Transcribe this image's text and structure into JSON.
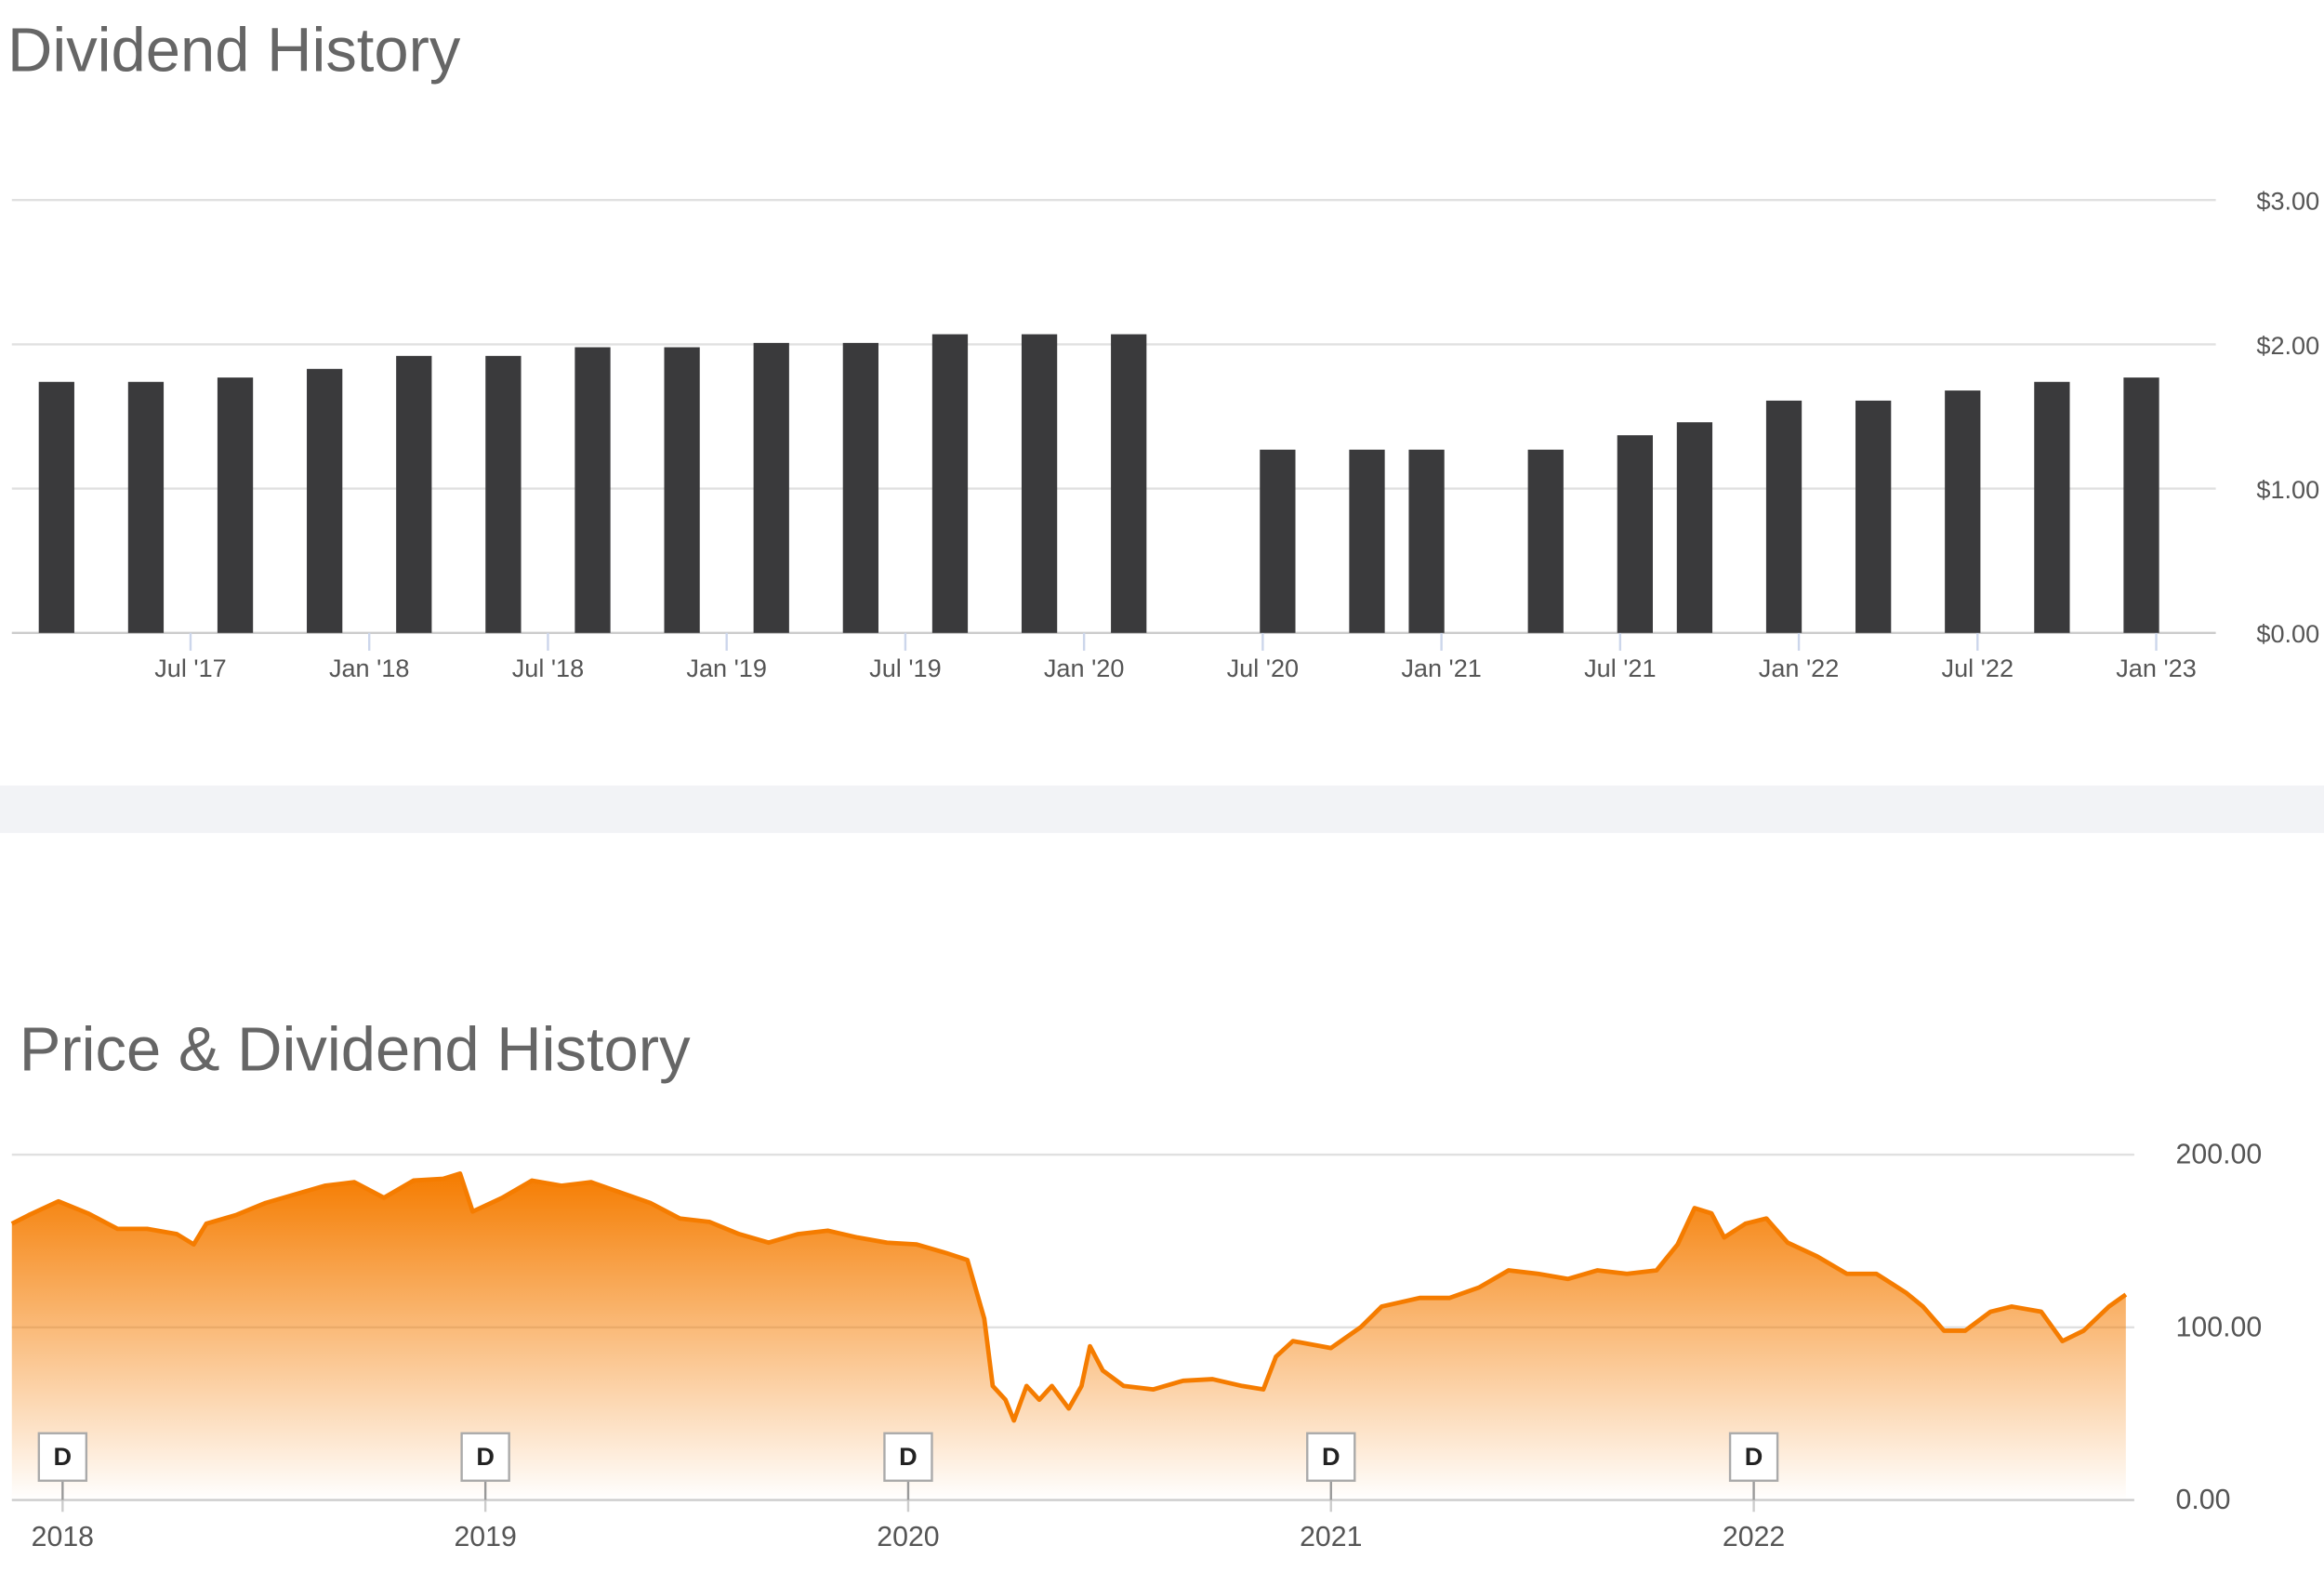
{
  "chart_data": [
    {
      "type": "bar",
      "title": "Dividend History",
      "x": [
        "2017-02",
        "2017-05",
        "2017-08",
        "2017-11",
        "2018-02",
        "2018-05",
        "2018-08",
        "2018-11",
        "2019-02",
        "2019-05",
        "2019-08",
        "2019-11",
        "2020-02",
        "2020-07",
        "2020-10",
        "2020-12",
        "2021-04",
        "2021-07",
        "2021-09",
        "2021-12",
        "2022-03",
        "2022-06",
        "2022-09",
        "2022-12"
      ],
      "values": [
        1.74,
        1.74,
        1.77,
        1.83,
        1.92,
        1.92,
        1.98,
        1.98,
        2.01,
        2.01,
        2.07,
        2.07,
        2.07,
        1.27,
        1.27,
        1.27,
        1.27,
        1.37,
        1.46,
        1.61,
        1.61,
        1.68,
        1.74,
        1.77
      ],
      "color": "#3a3a3c",
      "xlim": [
        "2017-01",
        "2023-03"
      ],
      "xticks": [
        {
          "value": "2017-07",
          "label": "Jul '17"
        },
        {
          "value": "2018-01",
          "label": "Jan '18"
        },
        {
          "value": "2018-07",
          "label": "Jul '18"
        },
        {
          "value": "2019-01",
          "label": "Jan '19"
        },
        {
          "value": "2019-07",
          "label": "Jul '19"
        },
        {
          "value": "2020-01",
          "label": "Jan '20"
        },
        {
          "value": "2020-07",
          "label": "Jul '20"
        },
        {
          "value": "2021-01",
          "label": "Jan '21"
        },
        {
          "value": "2021-07",
          "label": "Jul '21"
        },
        {
          "value": "2022-01",
          "label": "Jan '22"
        },
        {
          "value": "2022-07",
          "label": "Jul '22"
        },
        {
          "value": "2023-01",
          "label": "Jan '23"
        }
      ],
      "ylim": [
        0,
        3
      ],
      "yticks": [
        {
          "value": 0,
          "label": "$0.00"
        },
        {
          "value": 1,
          "label": "$1.00"
        },
        {
          "value": 2,
          "label": "$2.00"
        },
        {
          "value": 3,
          "label": "$3.00"
        }
      ],
      "grid": true
    },
    {
      "type": "area",
      "title": "Price & Dividend History",
      "x": [
        2017.88,
        2017.92,
        2017.99,
        2018.06,
        2018.13,
        2018.2,
        2018.27,
        2018.31,
        2018.34,
        2018.41,
        2018.48,
        2018.55,
        2018.62,
        2018.69,
        2018.76,
        2018.83,
        2018.9,
        2018.94,
        2018.97,
        2019.04,
        2019.11,
        2019.18,
        2019.25,
        2019.32,
        2019.39,
        2019.46,
        2019.53,
        2019.6,
        2019.67,
        2019.74,
        2019.81,
        2019.88,
        2019.95,
        2020.02,
        2020.09,
        2020.14,
        2020.18,
        2020.2,
        2020.23,
        2020.25,
        2020.28,
        2020.31,
        2020.34,
        2020.38,
        2020.41,
        2020.43,
        2020.46,
        2020.51,
        2020.58,
        2020.65,
        2020.72,
        2020.79,
        2020.84,
        2020.87,
        2020.91,
        2021.0,
        2021.07,
        2021.12,
        2021.21,
        2021.28,
        2021.35,
        2021.42,
        2021.49,
        2021.56,
        2021.63,
        2021.7,
        2021.77,
        2021.82,
        2021.86,
        2021.9,
        2021.93,
        2021.98,
        2022.03,
        2022.08,
        2022.15,
        2022.22,
        2022.29,
        2022.36,
        2022.4,
        2022.45,
        2022.5,
        2022.56,
        2022.61,
        2022.68,
        2022.73,
        2022.78,
        2022.84,
        2022.88
      ],
      "values": [
        160,
        165,
        173,
        166,
        157,
        157,
        154,
        148,
        160,
        165,
        172,
        177,
        182,
        184,
        175,
        185,
        186,
        189,
        167,
        175,
        185,
        182,
        184,
        178,
        172,
        163,
        161,
        154,
        149,
        154,
        156,
        152,
        149,
        148,
        143,
        139,
        105,
        66,
        58,
        46,
        66,
        58,
        66,
        53,
        66,
        89,
        75,
        66,
        64,
        69,
        70,
        66,
        64,
        83,
        92,
        88,
        100,
        112,
        117,
        117,
        123,
        133,
        131,
        128,
        133,
        131,
        133,
        148,
        169,
        166,
        152,
        160,
        163,
        149,
        141,
        131,
        131,
        120,
        112,
        98,
        98,
        109,
        112,
        109,
        92,
        98,
        112,
        119
      ],
      "color": "#f57c00",
      "xlim": [
        2017.88,
        2022.9
      ],
      "xticks": [
        2018,
        2019,
        2020,
        2021,
        2022
      ],
      "ylim": [
        0,
        200
      ],
      "yticks": [
        {
          "value": 0,
          "label": "0.00"
        },
        {
          "value": 100,
          "label": "100.00"
        },
        {
          "value": 200,
          "label": "200.00"
        }
      ],
      "grid": true,
      "dividend_markers": {
        "x": [
          2018,
          2019,
          2020,
          2021,
          2022
        ],
        "labels": [
          "D",
          "D",
          "D",
          "D",
          "D"
        ]
      }
    }
  ]
}
